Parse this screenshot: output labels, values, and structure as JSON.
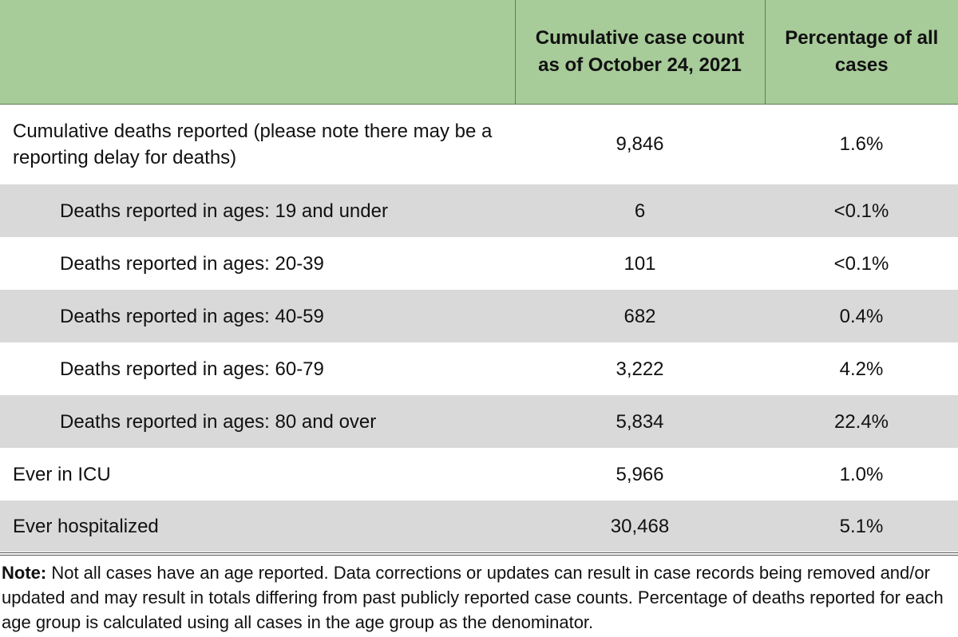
{
  "table": {
    "headers": [
      "",
      "Cumulative case count as of October 24, 2021",
      "Percentage of all cases"
    ],
    "rows": [
      {
        "label": "Cumulative deaths reported (please note there may be a reporting delay for deaths)",
        "count": "9,846",
        "percent": "1.6%"
      },
      {
        "label": "Deaths reported in ages: 19 and under",
        "count": "6",
        "percent": "<0.1%"
      },
      {
        "label": "Deaths reported in ages: 20-39",
        "count": "101",
        "percent": "<0.1%"
      },
      {
        "label": "Deaths reported in ages: 40-59",
        "count": "682",
        "percent": "0.4%"
      },
      {
        "label": "Deaths reported in ages: 60-79",
        "count": "3,222",
        "percent": "4.2%"
      },
      {
        "label": "Deaths reported in ages: 80 and over",
        "count": "5,834",
        "percent": "22.4%"
      },
      {
        "label": "Ever in ICU",
        "count": "5,966",
        "percent": "1.0%"
      },
      {
        "label": "Ever hospitalized",
        "count": "30,468",
        "percent": "5.1%"
      }
    ]
  },
  "note": {
    "label": "Note:",
    "text": " Not all cases have an age reported. Data corrections or updates can result in case records being removed and/or updated and may result in totals differing from past publicly reported case counts. Percentage of deaths reported for each age group is calculated using all cases in the age group as the denominator."
  },
  "colors": {
    "header_bg": "#a7cb99",
    "shaded_row_bg": "#d9d9d9"
  }
}
